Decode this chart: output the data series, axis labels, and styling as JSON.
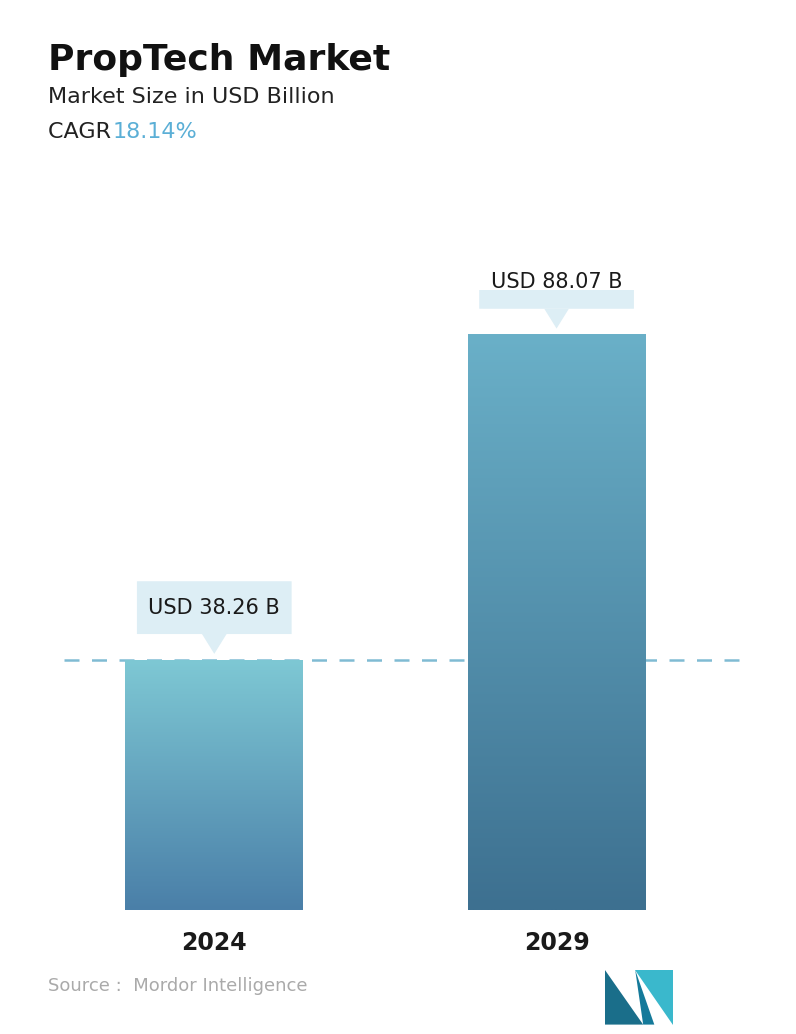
{
  "title": "PropTech Market",
  "subtitle": "Market Size in USD Billion",
  "cagr_label": "CAGR  ",
  "cagr_value": "18.14%",
  "cagr_color": "#5bafd6",
  "categories": [
    "2024",
    "2029"
  ],
  "values": [
    38.26,
    88.07
  ],
  "bar_labels": [
    "USD 38.26 B",
    "USD 88.07 B"
  ],
  "bar_gradient_top_2024": "#7ec8d4",
  "bar_gradient_bottom_2024": "#4a7fa8",
  "bar_gradient_top_2029": "#6ab0c8",
  "bar_gradient_bottom_2029": "#3d7090",
  "dashed_line_color": "#6ab0cc",
  "tooltip_bg": "#ddeef5",
  "tooltip_text_color": "#1a1a1a",
  "source_text": "Source :  Mordor Intelligence",
  "source_color": "#aaaaaa",
  "background_color": "#ffffff",
  "title_fontsize": 26,
  "subtitle_fontsize": 16,
  "cagr_fontsize": 16,
  "bar_label_fontsize": 15,
  "tick_fontsize": 17,
  "source_fontsize": 13,
  "ylim": [
    0,
    95
  ]
}
